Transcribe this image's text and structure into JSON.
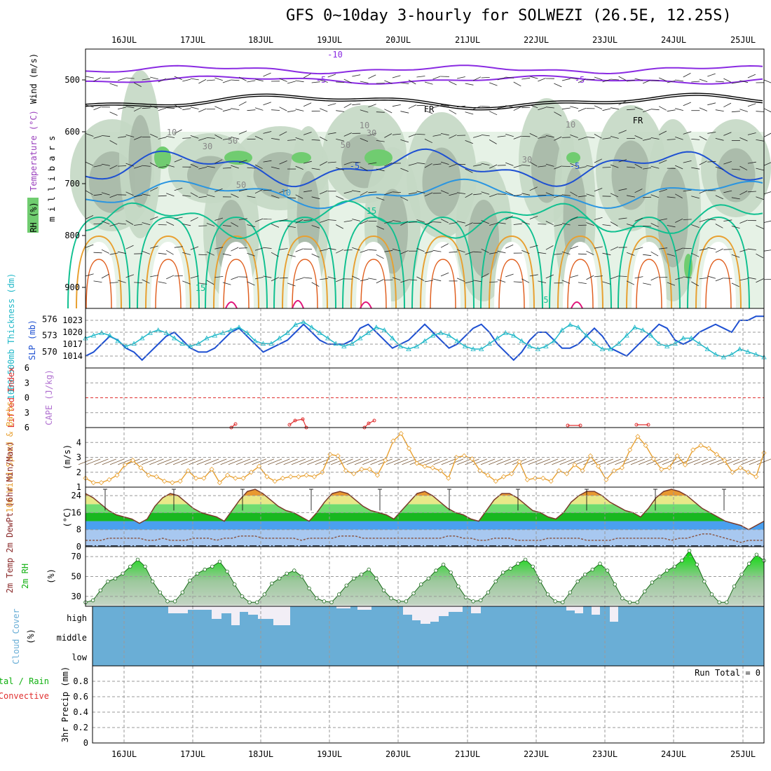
{
  "title": "GFS 0~10day 3-hourly for SOLWEZI (26.5E, 12.25S)",
  "dates": [
    "16JUL",
    "17JUL",
    "18JUL",
    "19JUL",
    "20JUL",
    "21JUL",
    "22JUL",
    "23JUL",
    "24JUL",
    "25JUL"
  ],
  "colors": {
    "purple": "#8a2be2",
    "blue": "#1e50d2",
    "lightblue": "#2a95e0",
    "teal": "#10c090",
    "orange": "#e8a030",
    "magenta": "#e0157a",
    "rh_light": "#e6f2e6",
    "rh_mid": "#c4d8c4",
    "rh_dark": "#a4b4a4",
    "rh_green": "#70cc70",
    "cloud": "#6aaed6",
    "cloud_gap": "#f2eef6"
  },
  "chart_data": [
    {
      "name": "upper-air cross-section",
      "type": "heatmap",
      "ylabel": "m i l l i b a r s",
      "y_ticks": [
        500,
        600,
        700,
        800,
        900
      ],
      "side_labels": [
        "RH (%)",
        "Temperature (°C)",
        "Wind (m/s)"
      ],
      "contour_labels": [
        "-10",
        "-5",
        "-5",
        "FR",
        "FR",
        "-5",
        "-5",
        "10",
        "15",
        "15",
        "5",
        "10",
        "30",
        "50",
        "50",
        "30",
        "10",
        "30",
        "10",
        "50"
      ]
    },
    {
      "name": "SLP and thickness",
      "type": "line",
      "left_ylabel": "1000-500mb Thickness (dm)",
      "right_ylabel": "SLP (mb)",
      "left_ticks": [
        576,
        573,
        570
      ],
      "right_ticks": [
        1023,
        1020,
        1017,
        1014
      ],
      "series": [
        {
          "name": "SLP (mb)",
          "values": [
            1014,
            1015,
            1017,
            1019,
            1018,
            1016,
            1015,
            1013,
            1015,
            1017,
            1019,
            1020,
            1018,
            1016,
            1015,
            1015,
            1016,
            1018,
            1020,
            1021,
            1019,
            1017,
            1015,
            1016,
            1017,
            1018,
            1020,
            1022,
            1020,
            1018,
            1017,
            1017,
            1017,
            1018,
            1021,
            1022,
            1020,
            1018,
            1016,
            1017,
            1018,
            1020,
            1022,
            1020,
            1018,
            1016,
            1017,
            1019,
            1021,
            1022,
            1020,
            1017,
            1015,
            1013,
            1015,
            1018,
            1020,
            1020,
            1018,
            1016,
            1016,
            1017,
            1019,
            1021,
            1019,
            1016,
            1015,
            1014,
            1016,
            1018,
            1020,
            1022,
            1021,
            1018,
            1017,
            1018,
            1020,
            1021,
            1022,
            1021,
            1020,
            1023,
            1023,
            1024,
            1024
          ]
        },
        {
          "name": "1000-500mb Thickness (dm)",
          "values": [
            572.5,
            573.0,
            573.5,
            573.0,
            572.0,
            571.0,
            571.5,
            572.5,
            573.5,
            574.0,
            573.5,
            572.5,
            571.5,
            571.0,
            571.5,
            572.5,
            573.0,
            573.5,
            574.0,
            574.5,
            573.5,
            572.0,
            571.5,
            571.5,
            572.5,
            573.5,
            575.0,
            575.5,
            574.5,
            573.5,
            572.5,
            571.5,
            571.0,
            571.5,
            572.5,
            573.5,
            574.5,
            574.0,
            572.5,
            571.0,
            570.5,
            571.0,
            572.0,
            573.0,
            573.5,
            573.0,
            572.0,
            571.0,
            570.5,
            570.5,
            571.5,
            572.5,
            573.5,
            573.0,
            572.0,
            571.0,
            570.5,
            571.0,
            572.0,
            574.0,
            575.0,
            574.5,
            573.0,
            571.5,
            570.5,
            570.5,
            571.5,
            573.0,
            574.5,
            574.0,
            573.0,
            571.5,
            571.0,
            571.5,
            572.5,
            572.5,
            571.5,
            570.5,
            569.5,
            569.0,
            569.5,
            570.5,
            570.0,
            569.5,
            569.0
          ]
        }
      ]
    },
    {
      "name": "Lifted Index and CAPE",
      "type": "line",
      "left_ylabel": "Lifted Index",
      "right_ylabel": "CAPE (J/kg)",
      "y_ticks": [
        -6,
        -3,
        0,
        3,
        6
      ],
      "ylim": [
        -6,
        6
      ]
    },
    {
      "name": "10m wind",
      "type": "line",
      "ylabel": "10m Wind Speed & Barbs",
      "unit": "(m/s)",
      "y_ticks": [
        1,
        2,
        3,
        4
      ],
      "ylim": [
        1,
        5
      ],
      "series": [
        {
          "name": "10m Wind Speed",
          "values": [
            1.6,
            1.3,
            1.3,
            1.5,
            1.8,
            2.5,
            2.8,
            2.3,
            1.8,
            1.7,
            1.4,
            1.3,
            1.4,
            2.1,
            1.6,
            1.6,
            2.2,
            1.3,
            1.8,
            1.6,
            1.6,
            2.0,
            2.4,
            1.7,
            1.4,
            1.6,
            1.7,
            1.7,
            1.8,
            1.7,
            2.0,
            3.2,
            3.1,
            2.1,
            1.9,
            2.2,
            2.2,
            1.8,
            2.8,
            4.1,
            4.6,
            3.6,
            2.6,
            2.4,
            2.3,
            2.1,
            1.6,
            3.0,
            3.1,
            2.9,
            2.1,
            1.8,
            1.4,
            1.7,
            1.9,
            2.7,
            1.5,
            1.6,
            1.6,
            1.4,
            2.1,
            1.9,
            2.5,
            2.1,
            3.1,
            2.4,
            1.5,
            2.1,
            2.3,
            3.5,
            4.4,
            3.8,
            2.9,
            2.2,
            2.3,
            3.1,
            2.5,
            3.5,
            3.8,
            3.6,
            3.2,
            2.8,
            2.0,
            2.3,
            2.0,
            1.7,
            3.3
          ]
        }
      ]
    },
    {
      "name": "2m temperature",
      "type": "area",
      "ylabel": "2m Temp 2m DewPt (6hr Min/Max)",
      "unit": "(°C)",
      "y_ticks": [
        0,
        8,
        16,
        24
      ],
      "ylim": [
        0,
        28
      ],
      "series": [
        {
          "name": "2m Temp",
          "values": [
            25,
            23,
            20,
            17,
            15,
            14,
            13,
            11,
            13,
            19,
            23,
            25,
            24,
            21,
            18,
            16,
            15,
            14,
            12,
            17,
            22,
            26,
            27,
            25,
            22,
            19,
            17,
            16,
            14,
            12,
            16,
            21,
            25,
            26,
            25,
            22,
            19,
            17,
            16,
            15,
            13,
            17,
            21,
            25,
            26,
            24,
            21,
            18,
            16,
            15,
            13,
            12,
            17,
            22,
            25,
            25,
            23,
            20,
            17,
            16,
            14,
            13,
            16,
            21,
            24,
            26,
            26,
            24,
            21,
            19,
            17,
            16,
            14,
            18,
            23,
            26,
            27,
            26,
            24,
            21,
            18,
            16,
            14,
            12,
            11,
            10,
            8,
            10,
            12
          ]
        },
        {
          "name": "2m DewPt",
          "values": [
            3,
            3,
            3,
            4,
            4,
            4,
            4,
            4,
            3,
            3,
            4,
            3,
            3,
            3,
            4,
            4,
            4,
            3,
            4,
            4,
            5,
            5,
            5,
            4,
            4,
            4,
            4,
            4,
            3,
            4,
            4,
            4,
            4,
            5,
            5,
            5,
            4,
            4,
            4,
            4,
            4,
            4,
            4,
            4,
            4,
            4,
            4,
            5,
            5,
            4,
            4,
            3,
            3,
            4,
            4,
            4,
            3,
            3,
            3,
            3,
            4,
            4,
            4,
            4,
            4,
            3,
            3,
            3,
            3,
            4,
            4,
            4,
            4,
            4,
            4,
            4,
            3,
            4,
            4,
            5,
            6,
            6,
            5,
            4,
            3,
            2,
            3,
            3,
            3
          ]
        }
      ]
    },
    {
      "name": "2m RH",
      "type": "area",
      "ylabel": "2m RH",
      "unit": "(%)",
      "y_ticks": [
        30,
        50,
        70
      ],
      "ylim": [
        20,
        80
      ],
      "series": [
        {
          "name": "2m RH",
          "values": [
            24,
            26,
            36,
            45,
            48,
            53,
            60,
            67,
            60,
            45,
            34,
            25,
            25,
            34,
            46,
            53,
            57,
            60,
            65,
            55,
            42,
            30,
            24,
            24,
            32,
            43,
            48,
            53,
            56,
            50,
            38,
            28,
            25,
            24,
            32,
            41,
            48,
            52,
            57,
            48,
            36,
            28,
            25,
            25,
            33,
            42,
            48,
            56,
            62,
            54,
            40,
            29,
            25,
            26,
            34,
            45,
            54,
            58,
            63,
            67,
            60,
            45,
            32,
            25,
            24,
            34,
            45,
            52,
            57,
            63,
            56,
            42,
            28,
            24,
            24,
            35,
            44,
            50,
            56,
            60,
            66,
            76,
            62,
            45,
            32,
            24,
            24,
            40,
            52,
            63,
            72,
            66
          ]
        }
      ]
    },
    {
      "name": "cloud cover",
      "type": "area",
      "ylabel": "Cloud Cover",
      "unit": "(%)",
      "y_ticks": [
        "high",
        "middle",
        "low"
      ]
    },
    {
      "name": "3hr precipitation",
      "type": "bar",
      "ylabel": "3hr Precip (mm)",
      "left_labels": [
        "Total / Rain",
        "Convective"
      ],
      "y_ticks": [
        0,
        0.2,
        0.4,
        0.6,
        0.8
      ],
      "ylim": [
        0,
        1
      ],
      "annotation": "Run Total = 0"
    }
  ]
}
